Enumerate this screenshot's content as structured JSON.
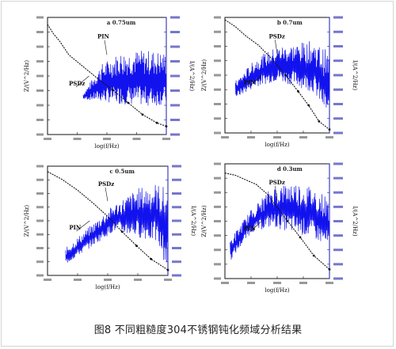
{
  "caption": "图8 不同粗糙度304不锈钢钝化频域分析结果",
  "colors": {
    "left_axis": "#111111",
    "right_axis": "#1a1aa8",
    "noise_series": "#1212ee",
    "psd_series": "#111111"
  },
  "chart_data": [
    {
      "type": "line",
      "panel": "top-left",
      "title": "a 0.75um",
      "xlabel": "log(f/Hz)",
      "ylabel_left": "Z/(V^2/Hz)",
      "ylabel_right": "I/(A^2/Hz)",
      "annotations": [
        "PIN",
        "PSDz"
      ],
      "series": [
        {
          "axis": "left",
          "color": "#111111",
          "points": [
            [
              0,
              0.06
            ],
            [
              0.05,
              0.14
            ],
            [
              0.1,
              0.2
            ],
            [
              0.18,
              0.32
            ],
            [
              0.3,
              0.42
            ],
            [
              0.42,
              0.52
            ],
            [
              0.55,
              0.62
            ],
            [
              0.68,
              0.73
            ],
            [
              0.8,
              0.83
            ],
            [
              0.92,
              0.9
            ],
            [
              1,
              0.93
            ]
          ]
        },
        {
          "axis": "right",
          "color": "#1212ee",
          "envelope": [
            [
              0.3,
              0.3,
              0.35
            ],
            [
              0.45,
              0.28,
              0.6
            ],
            [
              0.6,
              0.26,
              0.7
            ],
            [
              0.75,
              0.25,
              0.72
            ],
            [
              0.9,
              0.24,
              0.72
            ],
            [
              1,
              0.26,
              0.7
            ]
          ]
        }
      ]
    },
    {
      "type": "line",
      "panel": "top-right",
      "title": "b 0.7um",
      "xlabel": "log(f/Hz)",
      "ylabel_left": "Z/(V^2/Hz)",
      "ylabel_right": "I/(A^2/Hz)",
      "annotations": [
        "PSDz",
        "PIN"
      ],
      "series": [
        {
          "axis": "left",
          "color": "#111111",
          "points": [
            [
              0,
              0.02
            ],
            [
              0.1,
              0.08
            ],
            [
              0.2,
              0.16
            ],
            [
              0.32,
              0.24
            ],
            [
              0.45,
              0.36
            ],
            [
              0.58,
              0.5
            ],
            [
              0.7,
              0.64
            ],
            [
              0.8,
              0.76
            ],
            [
              0.9,
              0.9
            ],
            [
              1,
              0.97
            ]
          ]
        },
        {
          "axis": "right",
          "color": "#1212ee",
          "envelope": [
            [
              0.1,
              0.3,
              0.45
            ],
            [
              0.3,
              0.4,
              0.65
            ],
            [
              0.5,
              0.45,
              0.75
            ],
            [
              0.7,
              0.4,
              0.78
            ],
            [
              0.85,
              0.35,
              0.8
            ],
            [
              1,
              0.1,
              0.7
            ]
          ]
        }
      ]
    },
    {
      "type": "line",
      "panel": "bottom-left",
      "title": "c 0.5um",
      "xlabel": "log(f/Hz)",
      "ylabel_left": "Z/(V^2/Hz)",
      "ylabel_right": "I/(A^2/Hz)",
      "annotations": [
        "PSDz",
        "PIN"
      ],
      "series": [
        {
          "axis": "left",
          "color": "#111111",
          "points": [
            [
              0,
              0.05
            ],
            [
              0.12,
              0.12
            ],
            [
              0.25,
              0.22
            ],
            [
              0.38,
              0.34
            ],
            [
              0.5,
              0.46
            ],
            [
              0.62,
              0.6
            ],
            [
              0.74,
              0.73
            ],
            [
              0.86,
              0.85
            ],
            [
              1,
              0.95
            ]
          ]
        },
        {
          "axis": "right",
          "color": "#1212ee",
          "envelope": [
            [
              0.15,
              0.1,
              0.25
            ],
            [
              0.35,
              0.25,
              0.45
            ],
            [
              0.55,
              0.4,
              0.65
            ],
            [
              0.75,
              0.35,
              0.8
            ],
            [
              0.9,
              0.3,
              0.85
            ],
            [
              1,
              0.05,
              0.8
            ]
          ]
        }
      ]
    },
    {
      "type": "line",
      "panel": "bottom-right",
      "title": "d 0.3um",
      "xlabel": "log(f/Hz)",
      "ylabel_left": "Z/(V^2/Hz)",
      "ylabel_right": "I/(A^2/Hz)",
      "annotations": [
        "PSDz",
        "PIN"
      ],
      "series": [
        {
          "axis": "left",
          "color": "#111111",
          "points": [
            [
              0,
              0.08
            ],
            [
              0.1,
              0.1
            ],
            [
              0.2,
              0.14
            ],
            [
              0.3,
              0.18
            ],
            [
              0.4,
              0.26
            ],
            [
              0.5,
              0.38
            ],
            [
              0.6,
              0.5
            ],
            [
              0.72,
              0.64
            ],
            [
              0.85,
              0.8
            ],
            [
              1,
              0.92
            ]
          ]
        },
        {
          "axis": "right",
          "color": "#1212ee",
          "envelope": [
            [
              0.05,
              0.15,
              0.35
            ],
            [
              0.25,
              0.4,
              0.6
            ],
            [
              0.45,
              0.45,
              0.8
            ],
            [
              0.65,
              0.4,
              0.85
            ],
            [
              0.85,
              0.35,
              0.8
            ],
            [
              1,
              0.25,
              0.7
            ]
          ]
        }
      ]
    }
  ]
}
